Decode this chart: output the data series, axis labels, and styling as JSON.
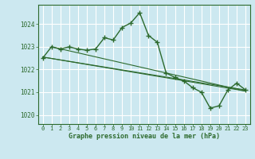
{
  "title": "Graphe pression niveau de la mer (hPa)",
  "background_color": "#cce8f0",
  "plot_bg_color": "#cce8f0",
  "grid_color": "#ffffff",
  "line_color": "#2d6a2d",
  "xlim": [
    -0.5,
    23.5
  ],
  "ylim": [
    1019.6,
    1024.85
  ],
  "yticks": [
    1020,
    1021,
    1022,
    1023,
    1024
  ],
  "xticks": [
    0,
    1,
    2,
    3,
    4,
    5,
    6,
    7,
    8,
    9,
    10,
    11,
    12,
    13,
    14,
    15,
    16,
    17,
    18,
    19,
    20,
    21,
    22,
    23
  ],
  "main_x": [
    0,
    1,
    2,
    3,
    4,
    5,
    6,
    7,
    8,
    9,
    10,
    11,
    12,
    13,
    14,
    15,
    16,
    17,
    18,
    19,
    20,
    21,
    22,
    23
  ],
  "main_y": [
    1022.5,
    1023.0,
    1022.9,
    1023.0,
    1022.9,
    1022.85,
    1022.9,
    1023.4,
    1023.3,
    1023.85,
    1024.05,
    1024.5,
    1023.5,
    1023.2,
    1021.85,
    1021.65,
    1021.5,
    1021.2,
    1021.0,
    1020.3,
    1020.4,
    1021.1,
    1021.4,
    1021.1
  ],
  "straight_lines": [
    {
      "x": [
        0,
        23
      ],
      "y": [
        1022.55,
        1021.05
      ]
    },
    {
      "x": [
        1,
        23
      ],
      "y": [
        1023.0,
        1021.05
      ]
    },
    {
      "x": [
        0,
        23
      ],
      "y": [
        1022.55,
        1021.1
      ]
    }
  ]
}
